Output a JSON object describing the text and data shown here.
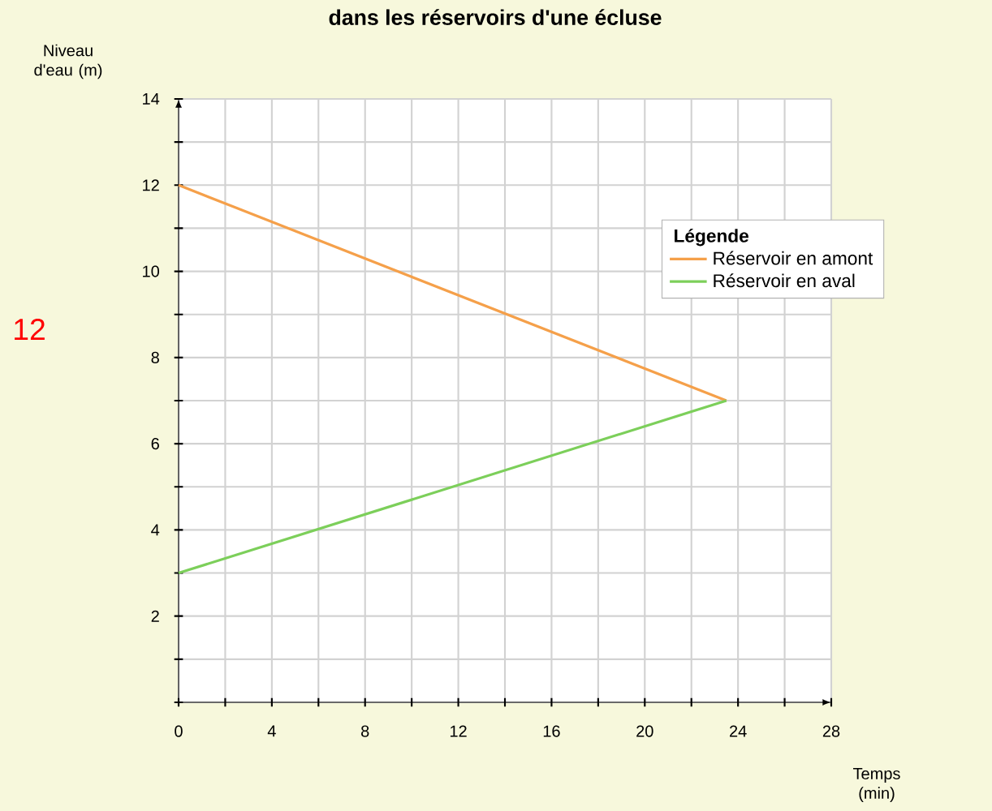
{
  "chart_data": {
    "type": "line",
    "title": "dans les réservoirs d'une écluse",
    "xlabel": "Temps (min)",
    "ylabel": "Niveau d'eau (m)",
    "legend_title": "Légende",
    "x": [
      0,
      23.5
    ],
    "series": [
      {
        "name": "Réservoir en amont",
        "color": "#f5a04a",
        "values": [
          12,
          7
        ]
      },
      {
        "name": "Réservoir en aval",
        "color": "#7ccf5a",
        "values": [
          3,
          7
        ]
      }
    ],
    "xlim": [
      0,
      28
    ],
    "ylim": [
      0,
      14
    ],
    "xticks": [
      0,
      {
        "value": 2,
        "label": null
      },
      4,
      {
        "value": 6,
        "label": null
      },
      8,
      {
        "value": 10,
        "label": null
      },
      12,
      {
        "value": 14,
        "label": null
      },
      16,
      {
        "value": 18,
        "label": null
      },
      20,
      {
        "value": 22,
        "label": null
      },
      24,
      {
        "value": 26,
        "label": null
      },
      28
    ],
    "yticks": [
      {
        "value": 0,
        "label": null
      },
      {
        "value": 1,
        "label": null
      },
      2,
      {
        "value": 3,
        "label": null
      },
      4,
      {
        "value": 5,
        "label": null
      },
      6,
      {
        "value": 7,
        "label": null
      },
      8,
      {
        "value": 9,
        "label": null
      },
      10,
      {
        "value": 11,
        "label": null
      },
      12,
      {
        "value": 13,
        "label": null
      },
      14
    ],
    "grid": true,
    "legend": "top right",
    "marker": "none",
    "line_style": "solid",
    "annotations": [
      "12"
    ]
  }
}
